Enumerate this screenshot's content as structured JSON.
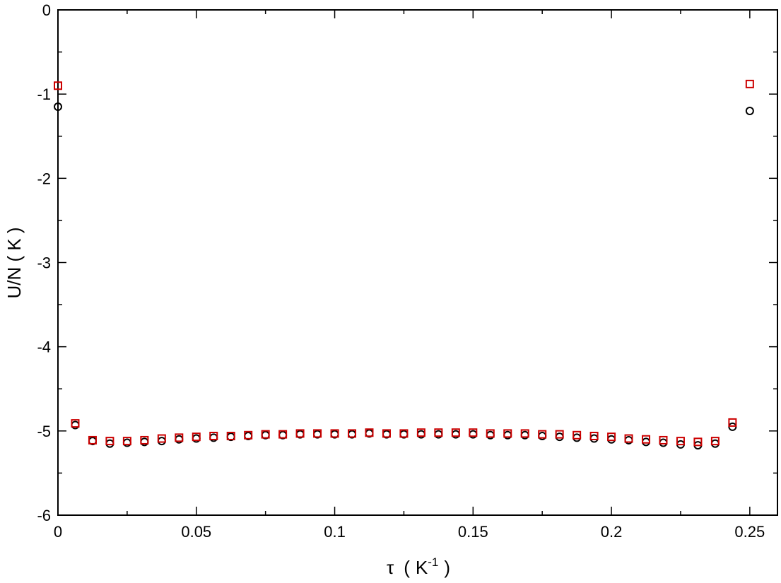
{
  "chart_data": {
    "type": "scatter",
    "title": "",
    "xlabel": {
      "symbol": "τ",
      "open": "(",
      "unit_base": "K",
      "unit_exp": "-1",
      "close": ")"
    },
    "ylabel": "U/N  ( K )",
    "xlim": [
      0,
      0.26
    ],
    "ylim": [
      -6,
      0
    ],
    "x_ticks": [
      0,
      0.05,
      0.1,
      0.15,
      0.2,
      0.25
    ],
    "x_tick_labels": [
      "0",
      "0.05",
      "0.1",
      "0.15",
      "0.2",
      "0.25"
    ],
    "y_ticks": [
      0,
      -1,
      -2,
      -3,
      -4,
      -5,
      -6
    ],
    "y_tick_labels": [
      "0",
      "-1",
      "-2",
      "-3",
      "-4",
      "-5",
      "-6"
    ],
    "grid": false,
    "legend": "none",
    "series": [
      {
        "marker": "circle",
        "color": "#000000",
        "x": [
          0,
          0.00625,
          0.0125,
          0.01875,
          0.025,
          0.03125,
          0.0375,
          0.04375,
          0.05,
          0.05625,
          0.0625,
          0.06875,
          0.075,
          0.08125,
          0.0875,
          0.09375,
          0.1,
          0.10625,
          0.1125,
          0.11875,
          0.125,
          0.13125,
          0.1375,
          0.14375,
          0.15,
          0.15625,
          0.1625,
          0.16875,
          0.175,
          0.18125,
          0.1875,
          0.19375,
          0.2,
          0.20625,
          0.2125,
          0.21875,
          0.225,
          0.23125,
          0.2375,
          0.24375,
          0.25
        ],
        "y": [
          -1.15,
          -4.93,
          -5.12,
          -5.15,
          -5.14,
          -5.13,
          -5.12,
          -5.1,
          -5.09,
          -5.08,
          -5.07,
          -5.06,
          -5.05,
          -5.05,
          -5.04,
          -5.04,
          -5.04,
          -5.04,
          -5.03,
          -5.04,
          -5.04,
          -5.04,
          -5.04,
          -5.04,
          -5.04,
          -5.05,
          -5.05,
          -5.05,
          -5.06,
          -5.07,
          -5.08,
          -5.09,
          -5.1,
          -5.11,
          -5.13,
          -5.14,
          -5.16,
          -5.17,
          -5.15,
          -4.95,
          -1.2
        ]
      },
      {
        "marker": "square",
        "color": "#cc0000",
        "x": [
          0,
          0.00625,
          0.0125,
          0.01875,
          0.025,
          0.03125,
          0.0375,
          0.04375,
          0.05,
          0.05625,
          0.0625,
          0.06875,
          0.075,
          0.08125,
          0.0875,
          0.09375,
          0.1,
          0.10625,
          0.1125,
          0.11875,
          0.125,
          0.13125,
          0.1375,
          0.14375,
          0.15,
          0.15625,
          0.1625,
          0.16875,
          0.175,
          0.18125,
          0.1875,
          0.19375,
          0.2,
          0.20625,
          0.2125,
          0.21875,
          0.225,
          0.23125,
          0.2375,
          0.24375,
          0.25
        ],
        "y": [
          -0.9,
          -4.91,
          -5.11,
          -5.12,
          -5.12,
          -5.11,
          -5.09,
          -5.08,
          -5.07,
          -5.06,
          -5.06,
          -5.05,
          -5.04,
          -5.04,
          -5.03,
          -5.03,
          -5.03,
          -5.03,
          -5.02,
          -5.03,
          -5.03,
          -5.02,
          -5.02,
          -5.02,
          -5.02,
          -5.03,
          -5.03,
          -5.03,
          -5.04,
          -5.04,
          -5.05,
          -5.06,
          -5.07,
          -5.09,
          -5.1,
          -5.11,
          -5.12,
          -5.13,
          -5.12,
          -4.9,
          -0.88
        ]
      }
    ]
  }
}
